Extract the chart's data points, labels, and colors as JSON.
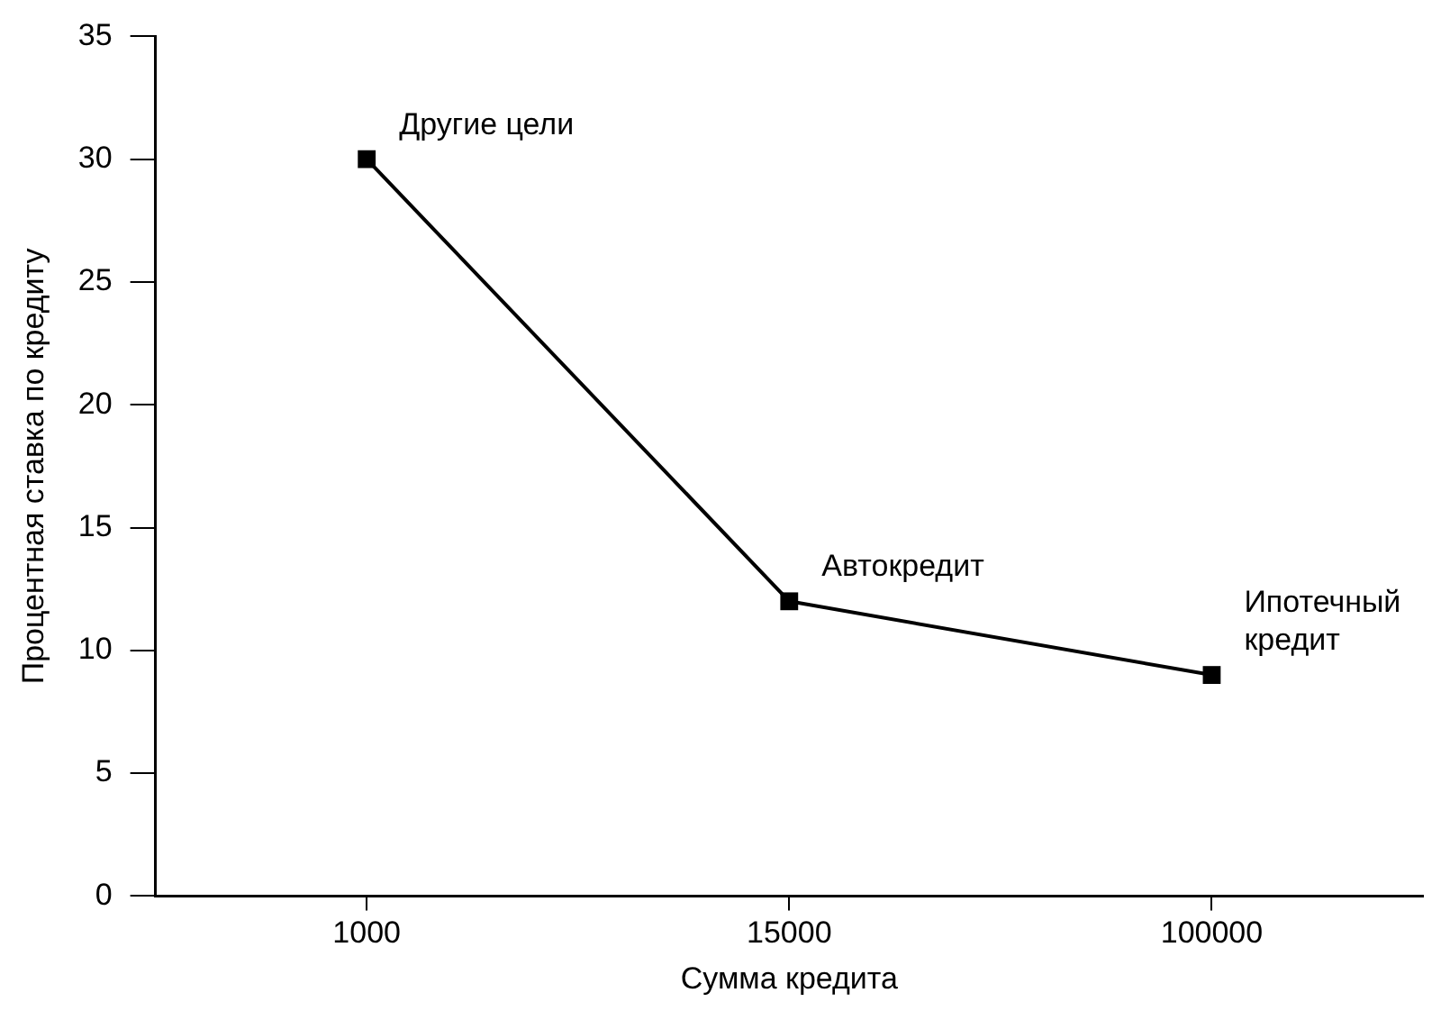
{
  "chart_data": {
    "type": "line",
    "xlabel": "Сумма кредита",
    "ylabel": "Процентная ставка по кредиту",
    "categories": [
      "1000",
      "15000",
      "100000"
    ],
    "series": [
      {
        "color": "#000000",
        "values": [
          30,
          12,
          9
        ]
      }
    ],
    "ylim": [
      0,
      35
    ],
    "yticks": [
      0,
      5,
      10,
      15,
      20,
      25,
      30,
      35
    ],
    "annotations": [
      {
        "text": "Другие цели",
        "x": "1000",
        "y": 30
      },
      {
        "text": "Автокредит",
        "x": "15000",
        "y": 12
      },
      {
        "text": "Ипотечный\nкредит",
        "x": "100000",
        "y": 9
      }
    ],
    "marker": "square",
    "line_style": "solid",
    "grid": false,
    "legend": false
  }
}
